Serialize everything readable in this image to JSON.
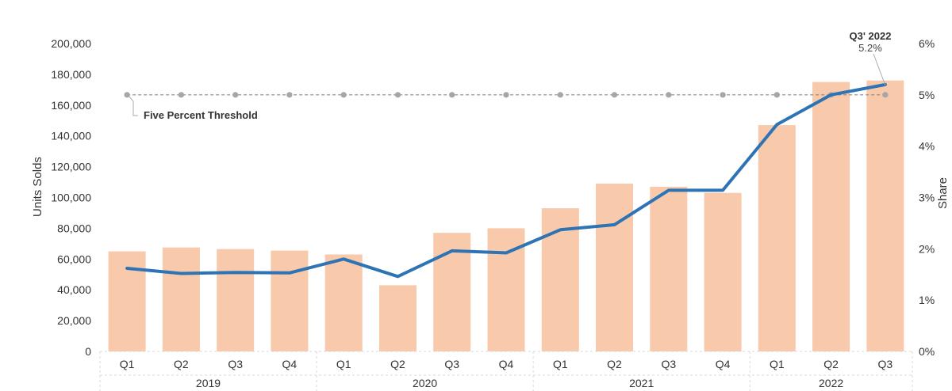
{
  "chart_data": {
    "type": "bar",
    "categories": [
      "Q1",
      "Q2",
      "Q3",
      "Q4",
      "Q1",
      "Q2",
      "Q3",
      "Q4",
      "Q1",
      "Q2",
      "Q3",
      "Q4",
      "Q1",
      "Q2",
      "Q3"
    ],
    "groups": [
      {
        "label": "2019",
        "count": 4
      },
      {
        "label": "2020",
        "count": 4
      },
      {
        "label": "2021",
        "count": 4
      },
      {
        "label": "2022",
        "count": 3
      }
    ],
    "bar_values": [
      65000,
      67500,
      66500,
      65500,
      63000,
      43000,
      77000,
      80000,
      93000,
      109000,
      107000,
      103000,
      147000,
      175000,
      176000
    ],
    "share_values": [
      1.62,
      1.52,
      1.54,
      1.53,
      1.8,
      1.46,
      1.96,
      1.92,
      2.37,
      2.47,
      3.14,
      3.14,
      4.42,
      5.0,
      5.2
    ],
    "threshold": {
      "value": 5,
      "label": "Five Percent Threshold"
    },
    "ylabel": "Units Solds",
    "y2label": "Share",
    "ylim": [
      0,
      200000
    ],
    "yticks": [
      "0",
      "20,000",
      "40,000",
      "60,000",
      "80,000",
      "100,000",
      "120,000",
      "140,000",
      "160,000",
      "180,000",
      "200,000"
    ],
    "y2lim": [
      0,
      6
    ],
    "y2ticks": [
      "0%",
      "1%",
      "2%",
      "3%",
      "4%",
      "5%",
      "6%"
    ],
    "annotation": {
      "title": "Q3' 2022",
      "value": "5.2%"
    },
    "colors": {
      "bar": "#f8c9aa",
      "line": "#2e74b5",
      "threshold": "#888888",
      "threshold_marker": "#a6a6a6",
      "grid_sep": "#d9d9d9"
    }
  }
}
